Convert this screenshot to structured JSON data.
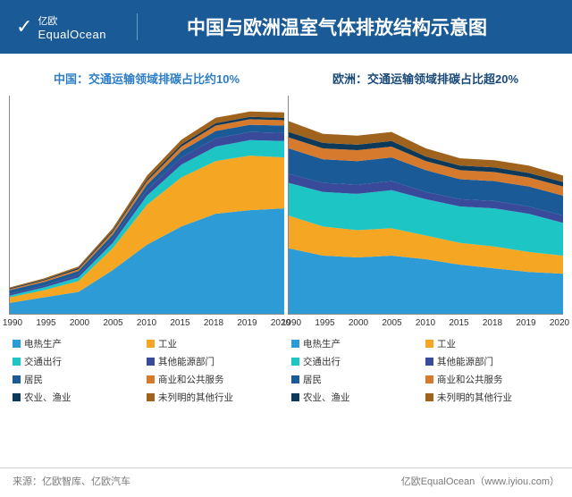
{
  "header": {
    "brand_cn": "亿欧",
    "brand_en": "EqualOcean",
    "title": "中国与欧洲温室气体排放结构示意图"
  },
  "colors": {
    "header_bg": "#1a5a96",
    "title_china": "#2d7ec7",
    "title_eu": "#1a4a7a",
    "series": {
      "electricity": "#2d9bd6",
      "industry": "#f5a623",
      "transport": "#1ec5c5",
      "other_energy": "#3a4a9a",
      "residential": "#1a5a96",
      "commercial": "#d67a2d",
      "agriculture": "#0d3a5a",
      "unspecified": "#a0631e"
    }
  },
  "legend_labels": {
    "electricity": "电热生产",
    "industry": "工业",
    "transport": "交通出行",
    "other_energy": "其他能源部门",
    "residential": "居民",
    "commercial": "商业和公共服务",
    "agriculture": "农业、渔业",
    "unspecified": "未列明的其他行业"
  },
  "charts": {
    "xlabels": [
      "1990",
      "1995",
      "2000",
      "2005",
      "2010",
      "2015",
      "2018",
      "2019",
      "2020"
    ],
    "china": {
      "title": "中国：交通运输领域排碳占比约10%",
      "ymax": 120,
      "series_order": [
        "electricity",
        "industry",
        "transport",
        "other_energy",
        "residential",
        "commercial",
        "agriculture",
        "unspecified"
      ],
      "data": {
        "electricity": [
          6,
          9,
          12,
          24,
          38,
          48,
          55,
          57,
          58
        ],
        "industry": [
          3,
          4,
          6,
          12,
          22,
          27,
          29,
          30,
          28
        ],
        "transport": [
          1,
          1.5,
          2,
          3,
          5,
          7,
          8,
          8.5,
          9
        ],
        "other_energy": [
          1,
          1,
          1.5,
          2,
          3,
          4,
          4.5,
          4.5,
          4.5
        ],
        "residential": [
          2,
          2,
          2,
          2.5,
          3,
          3.5,
          4,
          4,
          4
        ],
        "commercial": [
          0.5,
          0.8,
          1,
          1.5,
          2,
          2.5,
          3,
          3,
          3
        ],
        "agriculture": [
          0.5,
          0.5,
          0.7,
          0.8,
          1,
          1.2,
          1.3,
          1.3,
          1.3
        ],
        "unspecified": [
          0.5,
          0.7,
          0.8,
          1.2,
          2,
          2.5,
          3,
          3,
          3
        ]
      }
    },
    "europe": {
      "title": "欧洲：交通运输领域排碳占比超20%",
      "ymax": 120,
      "series_order": [
        "electricity",
        "industry",
        "transport",
        "other_energy",
        "residential",
        "commercial",
        "agriculture",
        "unspecified"
      ],
      "data": {
        "electricity": [
          36,
          32,
          31,
          32,
          30,
          27,
          25,
          23,
          22
        ],
        "industry": [
          18,
          16,
          15,
          15,
          13,
          12,
          12,
          11,
          10
        ],
        "transport": [
          18,
          19,
          20,
          21,
          20,
          20,
          21,
          21,
          18
        ],
        "other_energy": [
          5,
          5,
          5,
          5,
          4,
          4,
          4,
          4,
          4
        ],
        "residential": [
          14,
          13,
          13,
          13,
          12,
          11,
          11,
          11,
          11
        ],
        "commercial": [
          6,
          6,
          6,
          6,
          5,
          5,
          5,
          5,
          5
        ],
        "agriculture": [
          3,
          3,
          3,
          3,
          2.5,
          2.5,
          2.5,
          2.5,
          2.5
        ],
        "unspecified": [
          6,
          5,
          5,
          5,
          4.5,
          4,
          4,
          4,
          3.5
        ]
      }
    }
  },
  "footer": {
    "left": "来源：亿欧智库、亿欧汽车",
    "right": "亿欧EqualOcean（www.iyiou.com）"
  }
}
